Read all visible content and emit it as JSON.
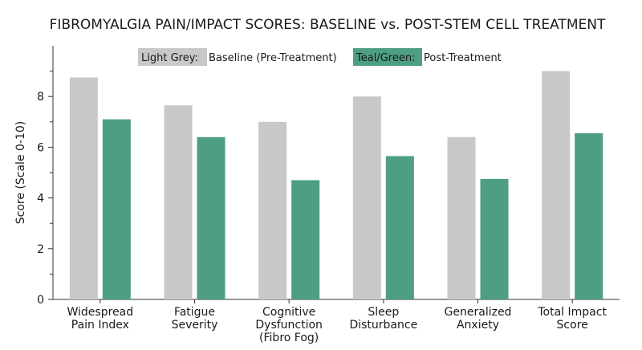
{
  "chart_data": {
    "type": "bar",
    "title": "FIBROMYALGIA PAIN/IMPACT SCORES: BASELINE vs. POST-STEM CELL TREATMENT",
    "xlabel": "",
    "ylabel": "Score (Scale 0-10)",
    "ylim": [
      0,
      10
    ],
    "yticks": [
      "0",
      "2",
      "4",
      "6",
      "8"
    ],
    "categories": [
      [
        "Widespread",
        "Pain Index"
      ],
      [
        "Fatigue",
        "Severity"
      ],
      [
        "Cognitive",
        "Dysfunction",
        "(Fibro Fog)"
      ],
      [
        "Sleep",
        "Disturbance"
      ],
      [
        "Generalized",
        "Anxiety"
      ],
      [
        "Total Impact",
        "Score"
      ]
    ],
    "series": [
      {
        "key": "baseline",
        "color": "#c8c8c8",
        "values": [
          8.75,
          7.65,
          7.0,
          8.0,
          6.4,
          9.0
        ]
      },
      {
        "key": "post",
        "color": "#4d9e82",
        "values": [
          7.1,
          6.4,
          4.7,
          5.65,
          4.75,
          6.55
        ]
      }
    ],
    "legend": {
      "placement": "top-center",
      "items": [
        {
          "swatch_label": "Light Grey:",
          "text": "Baseline (Pre-Treatment)",
          "color": "#c8c8c8"
        },
        {
          "swatch_label": "Teal/Green:",
          "text": "Post-Treatment",
          "color": "#4d9e82"
        }
      ]
    },
    "grid": false
  }
}
